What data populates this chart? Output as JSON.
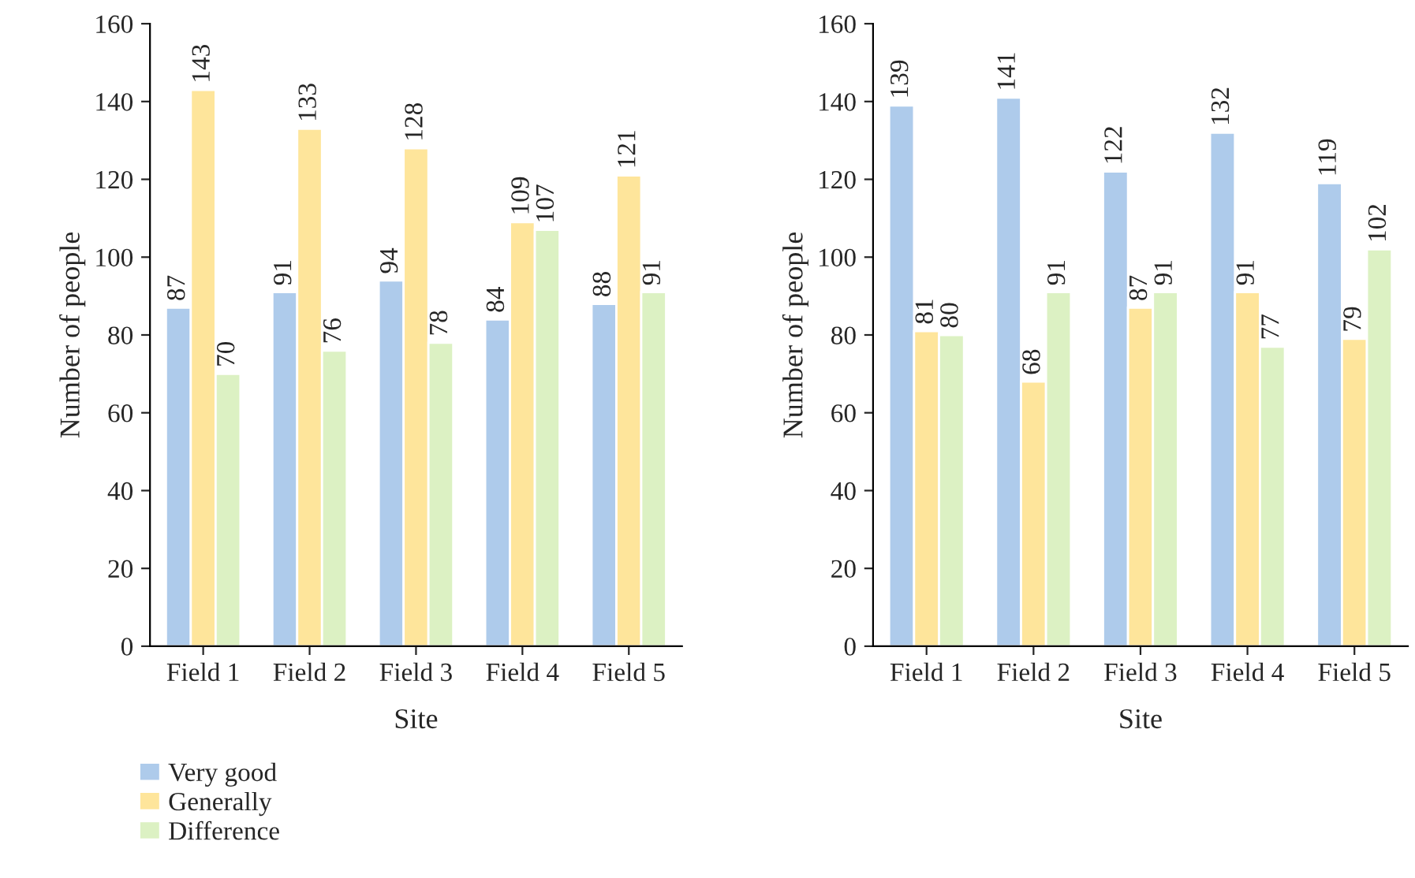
{
  "chart_data": [
    {
      "type": "bar",
      "xlabel": "Site",
      "ylabel": "Number of people",
      "categories": [
        "Field 1",
        "Field 2",
        "Field 3",
        "Field 4",
        "Field 5"
      ],
      "ylim": [
        0,
        160
      ],
      "yticks": [
        0,
        20,
        40,
        60,
        80,
        100,
        120,
        140,
        160
      ],
      "grid": false,
      "legend": "bottom left",
      "data_labels": true,
      "series": [
        {
          "name": "Very good",
          "color": "#aecbeb",
          "values": [
            87,
            91,
            94,
            84,
            88
          ]
        },
        {
          "name": "Generally",
          "color": "#fee59b",
          "values": [
            143,
            133,
            128,
            109,
            121
          ]
        },
        {
          "name": "Difference",
          "color": "#dcf1c3",
          "values": [
            70,
            76,
            78,
            107,
            91
          ]
        }
      ]
    },
    {
      "type": "bar",
      "xlabel": "Site",
      "ylabel": "Number of people",
      "categories": [
        "Field 1",
        "Field 2",
        "Field 3",
        "Field 4",
        "Field 5"
      ],
      "ylim": [
        0,
        160
      ],
      "yticks": [
        0,
        20,
        40,
        60,
        80,
        100,
        120,
        140,
        160
      ],
      "grid": false,
      "data_labels": true,
      "series": [
        {
          "color": "#aecbeb",
          "values": [
            139,
            141,
            122,
            132,
            119
          ]
        },
        {
          "color": "#fee59b",
          "values": [
            81,
            68,
            87,
            91,
            79
          ]
        },
        {
          "color": "#dcf1c3",
          "values": [
            80,
            91,
            91,
            77,
            102
          ]
        }
      ]
    }
  ]
}
